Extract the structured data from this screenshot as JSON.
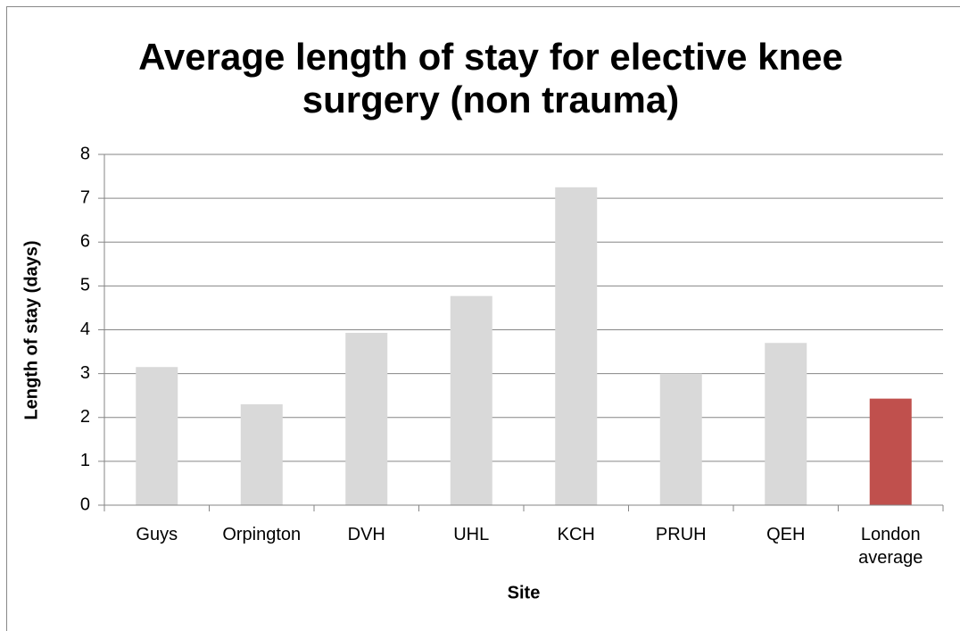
{
  "chart_data": {
    "type": "bar",
    "title": "Average length of stay for elective knee surgery (non trauma)",
    "x_label": "Site",
    "y_label": "Length of stay (days)",
    "categories": [
      "Guys",
      "Orpington",
      "DVH",
      "UHL",
      "KCH",
      "PRUH",
      "QEH",
      "London average"
    ],
    "values": [
      3.15,
      2.3,
      3.93,
      4.77,
      7.25,
      3.0,
      3.7,
      2.43
    ],
    "colors": [
      "#d9d9d9",
      "#d9d9d9",
      "#d9d9d9",
      "#d9d9d9",
      "#d9d9d9",
      "#d9d9d9",
      "#d9d9d9",
      "#c0504d"
    ],
    "ylim": [
      0,
      8
    ],
    "yticks": [
      0,
      1,
      2,
      3,
      4,
      5,
      6,
      7,
      8
    ],
    "grid": true
  }
}
